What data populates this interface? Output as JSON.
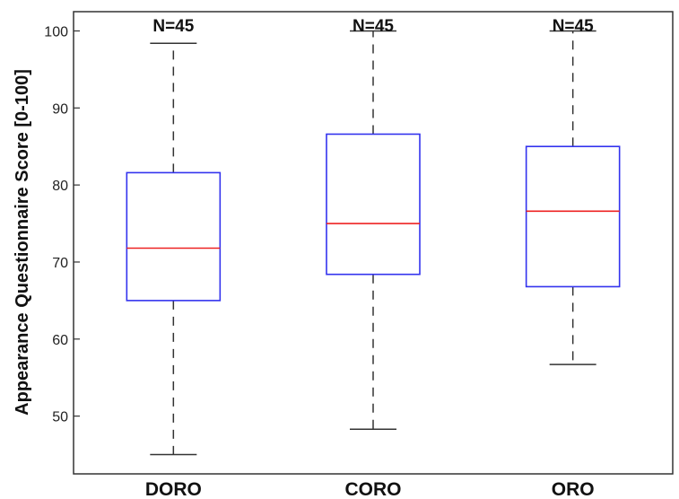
{
  "chart_data": {
    "type": "box",
    "ylabel": "Appearance Questionnaire Score [0-100]",
    "xlabel": "",
    "ylim": [
      42.5,
      102.5
    ],
    "yticks": [
      50,
      60,
      70,
      80,
      90,
      100
    ],
    "grid": false,
    "colors": {
      "box": "#3333ee",
      "median": "#ee2222",
      "whisker": "#333333",
      "axis": "#333333"
    },
    "categories": [
      "DORO",
      "CORO",
      "ORO"
    ],
    "boxes": [
      {
        "category": "DORO",
        "n_label": "N=45",
        "whisker_low": 45.0,
        "q1": 65.0,
        "median": 71.8,
        "q3": 81.6,
        "whisker_high": 98.4
      },
      {
        "category": "CORO",
        "n_label": "N=45",
        "whisker_low": 48.3,
        "q1": 68.4,
        "median": 75.0,
        "q3": 86.6,
        "whisker_high": 100.0
      },
      {
        "category": "ORO",
        "n_label": "N=45",
        "whisker_low": 56.7,
        "q1": 66.8,
        "median": 76.6,
        "q3": 85.0,
        "whisker_high": 100.0
      }
    ]
  }
}
